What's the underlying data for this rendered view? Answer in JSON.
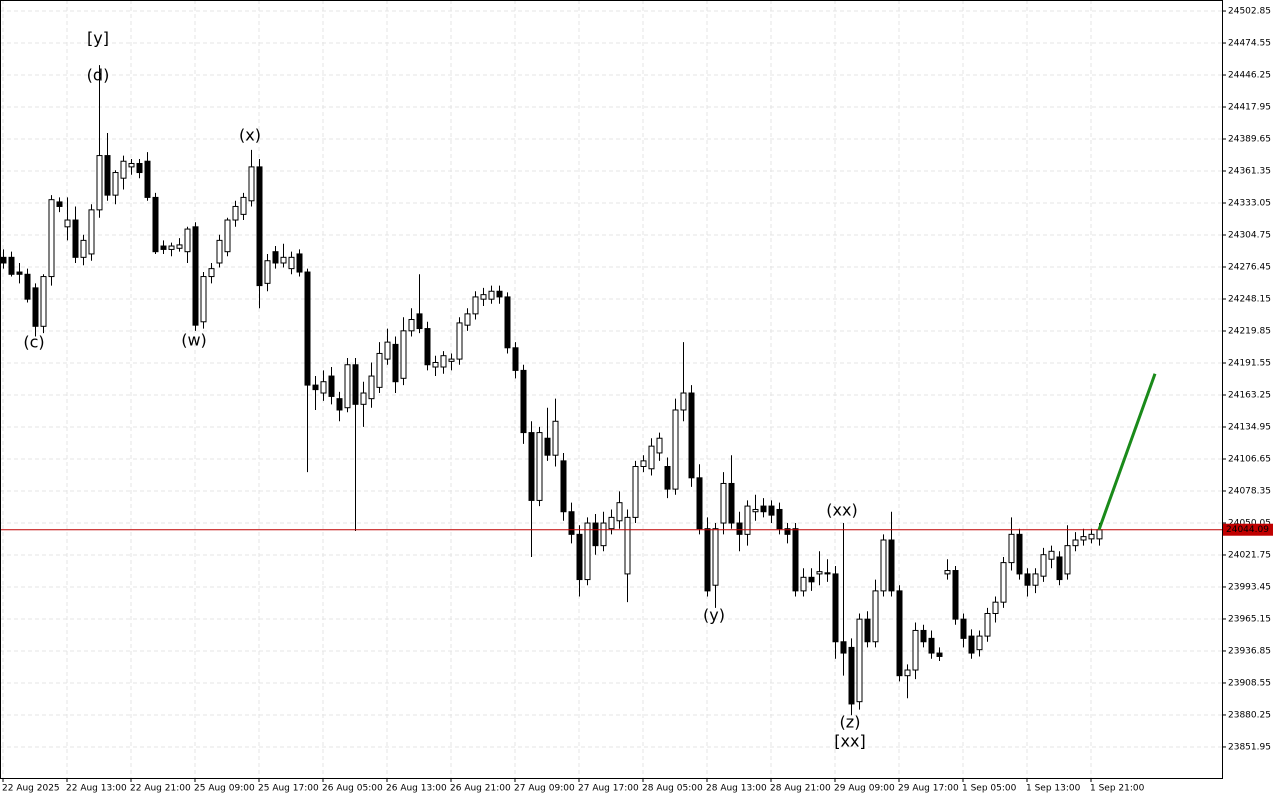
{
  "chart_data": {
    "type": "candlestick",
    "categories": [
      "22 Aug 2025",
      null,
      null,
      null,
      null,
      null,
      null,
      null,
      "22 Aug 13:00",
      null,
      null,
      null,
      null,
      null,
      null,
      null,
      "22 Aug 21:00",
      null,
      null,
      null,
      null,
      null,
      null,
      null,
      "25 Aug 09:00",
      null,
      null,
      null,
      null,
      null,
      null,
      null,
      "25 Aug 17:00",
      null,
      null,
      null,
      null,
      null,
      null,
      null,
      "26 Aug 05:00",
      null,
      null,
      null,
      null,
      null,
      null,
      null,
      "26 Aug 13:00",
      null,
      null,
      null,
      null,
      null,
      null,
      null,
      "26 Aug 21:00",
      null,
      null,
      null,
      null,
      null,
      null,
      null,
      "27 Aug 09:00",
      null,
      null,
      null,
      null,
      null,
      null,
      null,
      "27 Aug 17:00",
      null,
      null,
      null,
      null,
      null,
      null,
      null,
      "28 Aug 05:00",
      null,
      null,
      null,
      null,
      null,
      null,
      null,
      "28 Aug 13:00",
      null,
      null,
      null,
      null,
      null,
      null,
      null,
      "28 Aug 21:00",
      null,
      null,
      null,
      null,
      null,
      null,
      null,
      "29 Aug 09:00",
      null,
      null,
      null,
      null,
      null,
      null,
      null,
      "29 Aug 17:00",
      null,
      null,
      null,
      null,
      null,
      null,
      null,
      "1 Sep 05:00",
      null,
      null,
      null,
      null,
      null,
      null,
      null,
      "1 Sep 13:00",
      null,
      null,
      null,
      null,
      null,
      null,
      null,
      "1 Sep 21:00",
      null
    ],
    "candles": [
      [
        24285,
        24292,
        24275,
        24280
      ],
      [
        24285,
        24290,
        24268,
        24270
      ],
      [
        24272,
        24280,
        24262,
        24270
      ],
      [
        24270,
        24275,
        24245,
        24248
      ],
      [
        24258,
        24262,
        24215,
        24224
      ],
      [
        24224,
        24270,
        24218,
        24268
      ],
      [
        24268,
        24340,
        24260,
        24336
      ],
      [
        24334,
        24338,
        24325,
        24330
      ],
      [
        24312,
        24338,
        24300,
        24318
      ],
      [
        24318,
        24330,
        24280,
        24285
      ],
      [
        24285,
        24305,
        24278,
        24300
      ],
      [
        24288,
        24332,
        24282,
        24327
      ],
      [
        24327,
        24455,
        24320,
        24375
      ],
      [
        24375,
        24395,
        24335,
        24340
      ],
      [
        24340,
        24362,
        24332,
        24360
      ],
      [
        24355,
        24375,
        24345,
        24370
      ],
      [
        24365,
        24372,
        24358,
        24368
      ],
      [
        24368,
        24372,
        24355,
        24360
      ],
      [
        24370,
        24378,
        24335,
        24338
      ],
      [
        24338,
        24342,
        24288,
        24290
      ],
      [
        24295,
        24300,
        24288,
        24292
      ],
      [
        24292,
        24298,
        24286,
        24295
      ],
      [
        24293,
        24302,
        24290,
        24296
      ],
      [
        24290,
        24312,
        24280,
        24310
      ],
      [
        24312,
        24316,
        24220,
        24225
      ],
      [
        24228,
        24272,
        24222,
        24268
      ],
      [
        24268,
        24280,
        24262,
        24275
      ],
      [
        24280,
        24305,
        24276,
        24300
      ],
      [
        24290,
        24320,
        24286,
        24318
      ],
      [
        24318,
        24335,
        24312,
        24330
      ],
      [
        24323,
        24342,
        24318,
        24338
      ],
      [
        24335,
        24380,
        24330,
        24365
      ],
      [
        24365,
        24372,
        24240,
        24260
      ],
      [
        24262,
        24288,
        24255,
        24282
      ],
      [
        24290,
        24295,
        24275,
        24280
      ],
      [
        24280,
        24297,
        24276,
        24285
      ],
      [
        24275,
        24290,
        24270,
        24285
      ],
      [
        24288,
        24292,
        24268,
        24272
      ],
      [
        24272,
        24275,
        24095,
        24172
      ],
      [
        24172,
        24180,
        24150,
        24168
      ],
      [
        24165,
        24185,
        24158,
        24175
      ],
      [
        24180,
        24188,
        24155,
        24162
      ],
      [
        24160,
        24166,
        24140,
        24150
      ],
      [
        24152,
        24196,
        24148,
        24190
      ],
      [
        24190,
        24196,
        24043,
        24155
      ],
      [
        24155,
        24175,
        24135,
        24165
      ],
      [
        24160,
        24192,
        24152,
        24180
      ],
      [
        24170,
        24210,
        24165,
        24200
      ],
      [
        24195,
        24222,
        24190,
        24210
      ],
      [
        24208,
        24215,
        24165,
        24175
      ],
      [
        24178,
        24232,
        24172,
        24220
      ],
      [
        24220,
        24240,
        24215,
        24230
      ],
      [
        24235,
        24270,
        24218,
        24222
      ],
      [
        24222,
        24228,
        24185,
        24190
      ],
      [
        24188,
        24198,
        24180,
        24192
      ],
      [
        24188,
        24202,
        24182,
        24198
      ],
      [
        24193,
        24200,
        24185,
        24195
      ],
      [
        24195,
        24232,
        24190,
        24227
      ],
      [
        24225,
        24240,
        24220,
        24235
      ],
      [
        24235,
        24255,
        24230,
        24250
      ],
      [
        24248,
        24258,
        24242,
        24252
      ],
      [
        24248,
        24260,
        24244,
        24255
      ],
      [
        24255,
        24260,
        24244,
        24250
      ],
      [
        24250,
        24254,
        24200,
        24205
      ],
      [
        24205,
        24210,
        24178,
        24185
      ],
      [
        24185,
        24190,
        24120,
        24130
      ],
      [
        24130,
        24140,
        24020,
        24070
      ],
      [
        24070,
        24135,
        24065,
        24130
      ],
      [
        24125,
        24152,
        24105,
        24110
      ],
      [
        24110,
        24160,
        24100,
        24140
      ],
      [
        24105,
        24112,
        24052,
        24060
      ],
      [
        24060,
        24068,
        24032,
        24040
      ],
      [
        24040,
        24048,
        23985,
        24000
      ],
      [
        24000,
        24055,
        23995,
        24050
      ],
      [
        24050,
        24058,
        24022,
        24030
      ],
      [
        24030,
        24060,
        24025,
        24050
      ],
      [
        24045,
        24062,
        24040,
        24055
      ],
      [
        24052,
        24078,
        24045,
        24068
      ],
      [
        24005,
        24062,
        23980,
        24055
      ],
      [
        24055,
        24105,
        24050,
        24100
      ],
      [
        24100,
        24110,
        24095,
        24105
      ],
      [
        24098,
        24125,
        24092,
        24118
      ],
      [
        24112,
        24130,
        24105,
        24125
      ],
      [
        24100,
        24108,
        24072,
        24080
      ],
      [
        24080,
        24160,
        24075,
        24150
      ],
      [
        24150,
        24210,
        24140,
        24165
      ],
      [
        24165,
        24172,
        24082,
        24090
      ],
      [
        24090,
        24102,
        24040,
        24045
      ],
      [
        24045,
        24055,
        23985,
        23990
      ],
      [
        23995,
        24050,
        23975,
        24045
      ],
      [
        24050,
        24095,
        24040,
        24085
      ],
      [
        24085,
        24110,
        24045,
        24050
      ],
      [
        24050,
        24060,
        24025,
        24040
      ],
      [
        24040,
        24070,
        24030,
        24065
      ],
      [
        24060,
        24075,
        24052,
        24062
      ],
      [
        24065,
        24072,
        24055,
        24060
      ],
      [
        24065,
        24070,
        24050,
        24057
      ],
      [
        24062,
        24068,
        24040,
        24045
      ],
      [
        24045,
        24050,
        24032,
        24040
      ],
      [
        24045,
        24050,
        23985,
        23990
      ],
      [
        23990,
        24010,
        23985,
        24002
      ],
      [
        24002,
        24010,
        23990,
        23998
      ],
      [
        24005,
        24025,
        23995,
        24007
      ],
      [
        24006,
        24018,
        23998,
        24005
      ],
      [
        24005,
        24012,
        23930,
        23945
      ],
      [
        23945,
        24050,
        23915,
        23935
      ],
      [
        23940,
        23948,
        23880,
        23890
      ],
      [
        23892,
        23970,
        23885,
        23965
      ],
      [
        23965,
        23972,
        23940,
        23945
      ],
      [
        23945,
        24000,
        23940,
        23990
      ],
      [
        23990,
        24040,
        23985,
        24035
      ],
      [
        24035,
        24060,
        23985,
        23990
      ],
      [
        23990,
        23995,
        23910,
        23915
      ],
      [
        23915,
        23925,
        23895,
        23920
      ],
      [
        23920,
        23962,
        23912,
        23955
      ],
      [
        23955,
        23960,
        23940,
        23945
      ],
      [
        23948,
        23955,
        23930,
        23935
      ],
      [
        23935,
        23940,
        23928,
        23932
      ],
      [
        24005,
        24018,
        24000,
        24008
      ],
      [
        24008,
        24012,
        23960,
        23965
      ],
      [
        23965,
        23970,
        23940,
        23948
      ],
      [
        23950,
        23956,
        23930,
        23935
      ],
      [
        23938,
        23955,
        23932,
        23950
      ],
      [
        23950,
        23975,
        23945,
        23970
      ],
      [
        23970,
        23985,
        23962,
        23980
      ],
      [
        23980,
        24020,
        23975,
        24015
      ],
      [
        24015,
        24055,
        24008,
        24040
      ],
      [
        24040,
        24045,
        24000,
        24005
      ],
      [
        24005,
        24010,
        23985,
        23995
      ],
      [
        23995,
        24010,
        23988,
        24005
      ],
      [
        24003,
        24028,
        23998,
        24022
      ],
      [
        24018,
        24030,
        24010,
        24025
      ],
      [
        24020,
        24025,
        23995,
        24000
      ],
      [
        24005,
        24048,
        24000,
        24030
      ],
      [
        24030,
        24042,
        24025,
        24035
      ],
      [
        24035,
        24045,
        24030,
        24038
      ],
      [
        24036,
        24045,
        24032,
        24040
      ],
      [
        24036,
        24050,
        24030,
        24044.09
      ]
    ],
    "up_color": "#ffffff",
    "down_color": "#000000",
    "ylim": [
      23824.5,
      24512.6
    ],
    "yticks": [
      24502.85,
      24474.55,
      24446.25,
      24417.95,
      24389.65,
      24361.35,
      24333.05,
      24304.75,
      24276.45,
      24248.15,
      24219.85,
      24191.55,
      24163.25,
      24134.95,
      24106.65,
      24078.35,
      24050.05,
      24021.75,
      23993.45,
      23965.15,
      23936.85,
      23908.55,
      23880.25,
      23851.95
    ],
    "grid": true,
    "current_price": 24044.09,
    "current_price_color": "#c00000",
    "projection": {
      "color": "#1a8a1a",
      "values": [
        24044.09,
        24182
      ]
    },
    "annotations": [
      {
        "text": "[y]",
        "color": "#55c055"
      },
      {
        "text": "(d)",
        "color": "#1a1acd"
      },
      {
        "text": "(c)",
        "color": "#1a1acd"
      },
      {
        "text": "(x)",
        "color": "#1a1acd"
      },
      {
        "text": "(w)",
        "color": "#1a1acd"
      },
      {
        "text": "(y)",
        "color": "#1a1acd"
      },
      {
        "text": "(xx)",
        "color": "#1a1acd"
      },
      {
        "text": "(z)",
        "color": "#1a1acd"
      },
      {
        "text": "[xx]",
        "color": "#55c055"
      }
    ]
  }
}
